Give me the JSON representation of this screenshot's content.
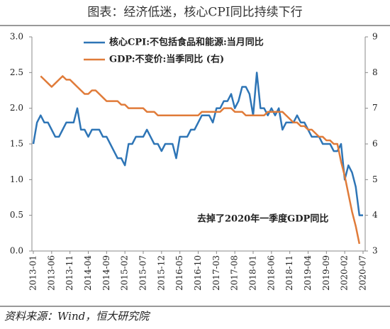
{
  "chart_data": {
    "type": "line",
    "title": "图表：经济低迷，核心CPI同比持续下行",
    "source": "资料来源：Wind，恒大研究院",
    "annotation": "去掉了2020年一季度GDP同比",
    "categories": [
      "2013-01",
      null,
      null,
      null,
      null,
      "2013-06",
      null,
      null,
      null,
      null,
      "2013-11",
      null,
      null,
      null,
      null,
      "2014-04",
      null,
      null,
      null,
      null,
      "2014-09",
      null,
      null,
      null,
      null,
      "2015-02",
      null,
      null,
      null,
      null,
      "2015-07",
      null,
      null,
      null,
      null,
      "2015-12",
      null,
      null,
      null,
      null,
      "2016-05",
      null,
      null,
      null,
      null,
      "2016-10",
      null,
      null,
      null,
      null,
      "2017-03",
      null,
      null,
      null,
      null,
      "2017-08",
      null,
      null,
      null,
      null,
      "2018-01",
      null,
      null,
      null,
      null,
      "2018-06",
      null,
      null,
      null,
      null,
      "2018-11",
      null,
      null,
      null,
      null,
      "2019-04",
      null,
      null,
      null,
      null,
      "2019-09",
      null,
      null,
      null,
      null,
      "2020-02",
      null,
      null,
      null,
      null,
      "2020-07"
    ],
    "series": [
      {
        "name": "核心CPI:不包括食品和能源:当月同比",
        "color": "#2e75b6",
        "axis": "y",
        "values": [
          1.5,
          1.8,
          1.9,
          1.8,
          1.8,
          1.7,
          1.6,
          1.6,
          1.7,
          1.8,
          1.8,
          1.8,
          2.0,
          1.7,
          1.7,
          1.6,
          1.7,
          1.7,
          1.7,
          1.6,
          1.6,
          1.5,
          1.4,
          1.3,
          1.3,
          1.2,
          1.5,
          1.5,
          1.6,
          1.6,
          1.6,
          1.7,
          1.6,
          1.5,
          1.5,
          1.4,
          1.5,
          1.5,
          1.5,
          1.3,
          1.6,
          1.6,
          1.6,
          1.7,
          1.7,
          1.8,
          1.9,
          1.9,
          1.9,
          1.8,
          2.0,
          2.0,
          2.1,
          2.1,
          2.2,
          2.0,
          2.1,
          2.3,
          2.3,
          2.2,
          1.9,
          2.5,
          2.0,
          2.0,
          1.9,
          2.0,
          1.9,
          2.0,
          1.7,
          1.8,
          1.8,
          1.8,
          1.9,
          1.8,
          1.8,
          1.7,
          1.6,
          1.6,
          1.6,
          1.5,
          1.5,
          1.5,
          1.4,
          1.4,
          1.5,
          1.0,
          1.2,
          1.1,
          0.9,
          0.5,
          0.5
        ]
      },
      {
        "name": "GDP:不变价:当季同比 (右)",
        "color": "#e07b39",
        "axis": "y2",
        "values": [
          null,
          null,
          7.9,
          7.8,
          7.7,
          7.6,
          7.7,
          7.8,
          7.9,
          7.8,
          7.8,
          7.7,
          7.6,
          7.5,
          7.4,
          7.4,
          7.5,
          7.5,
          7.4,
          7.3,
          7.2,
          7.2,
          7.2,
          7.2,
          7.1,
          7.1,
          7.0,
          7.0,
          7.0,
          7.0,
          7.0,
          6.9,
          6.9,
          6.9,
          6.8,
          6.8,
          6.8,
          6.8,
          6.8,
          6.8,
          6.8,
          6.8,
          6.8,
          6.8,
          6.8,
          6.8,
          6.9,
          6.9,
          6.9,
          6.9,
          6.9,
          6.9,
          7.0,
          7.0,
          7.0,
          6.9,
          6.9,
          6.9,
          6.8,
          6.8,
          6.8,
          6.8,
          6.8,
          6.8,
          6.9,
          6.9,
          6.9,
          6.9,
          6.9,
          6.8,
          6.7,
          6.6,
          6.6,
          6.5,
          6.5,
          6.4,
          6.4,
          6.3,
          6.2,
          6.2,
          6.1,
          6.1,
          6.0,
          6.0,
          5.5,
          5.1,
          4.6,
          4.1,
          3.7,
          3.2,
          null
        ]
      }
    ],
    "ylim": [
      0,
      3
    ],
    "yticks": [
      {
        "value": 0,
        "label": "0.0"
      },
      0.5,
      {
        "value": 1,
        "label": "1.0"
      },
      1.5,
      {
        "value": 2,
        "label": "2.0"
      },
      2.5,
      {
        "value": 3,
        "label": "3.0"
      }
    ],
    "y2lim": [
      3,
      9
    ],
    "y2ticks": [
      3,
      4,
      5,
      6,
      7,
      8,
      9
    ],
    "grid": false
  }
}
